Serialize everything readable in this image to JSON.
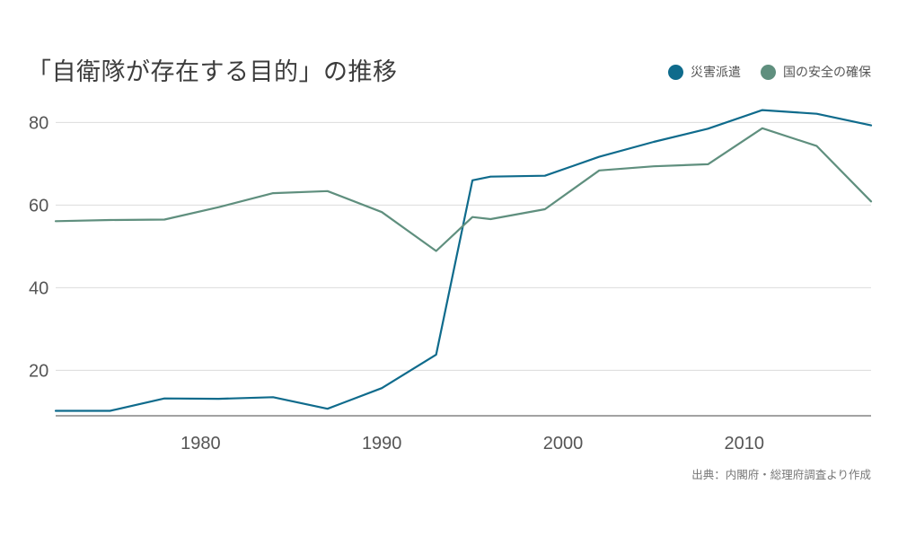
{
  "title": "「自衛隊が存在する目的」の推移",
  "source": "出典：内閣府・総理府調査より作成",
  "legend": [
    {
      "name": "災害派遣",
      "color": "#0f6b8c"
    },
    {
      "name": "国の安全の確保",
      "color": "#5f8f7e"
    }
  ],
  "chart_data": {
    "type": "line",
    "title": "「自衛隊が存在する目的」の推移",
    "xlabel": "",
    "ylabel": "",
    "xlim": [
      1972,
      2017
    ],
    "ylim": [
      9,
      84
    ],
    "x_ticks": [
      1980,
      1990,
      2000,
      2010
    ],
    "y_ticks": [
      20,
      40,
      60,
      80
    ],
    "grid": true,
    "legend_position": "top-right",
    "series": [
      {
        "name": "災害派遣",
        "color": "#0f6b8c",
        "x": [
          1972,
          1975,
          1978,
          1981,
          1984,
          1987,
          1990,
          1993,
          1995,
          1996,
          1999,
          2002,
          2005,
          2008,
          2011,
          2014,
          2017
        ],
        "y": [
          10.2,
          10.2,
          13.2,
          13.1,
          13.5,
          10.7,
          15.7,
          23.8,
          66,
          66.9,
          67.1,
          71.7,
          75.3,
          78.5,
          83,
          82.1,
          79.3
        ]
      },
      {
        "name": "国の安全の確保",
        "color": "#5f8f7e",
        "x": [
          1972,
          1975,
          1978,
          1981,
          1984,
          1987,
          1990,
          1993,
          1995,
          1996,
          1999,
          2002,
          2005,
          2008,
          2011,
          2014,
          2017
        ],
        "y": [
          56.1,
          56.4,
          56.5,
          59.5,
          62.9,
          63.4,
          58.3,
          48.9,
          57.1,
          56.6,
          59,
          68.4,
          69.4,
          69.9,
          78.6,
          74.3,
          60.9
        ]
      }
    ]
  }
}
